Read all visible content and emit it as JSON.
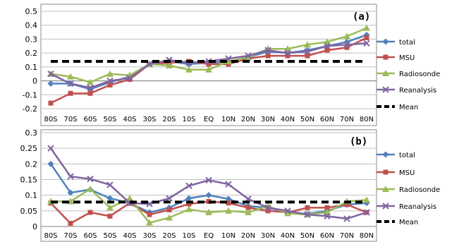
{
  "chart_data": [
    {
      "type": "line",
      "panel_label": "(a)",
      "x": [
        "80S",
        "70S",
        "60S",
        "50S",
        "40S",
        "30S",
        "20S",
        "10S",
        "EQ",
        "10N",
        "20N",
        "30N",
        "40N",
        "50N",
        "60N",
        "70N",
        "80N"
      ],
      "ylim": [
        -0.2,
        0.5
      ],
      "yticks": [
        "-0.2",
        "-0.1",
        "0",
        "0.1",
        "0.2",
        "0.3",
        "0.4",
        "0.5"
      ],
      "ytick_values": [
        -0.2,
        -0.1,
        0,
        0.1,
        0.2,
        0.3,
        0.4,
        0.5
      ],
      "grid": true,
      "legend_position": "right",
      "series": [
        {
          "name": "total",
          "color": "#4f81bd",
          "marker": "diamond",
          "values": [
            -0.02,
            -0.02,
            -0.06,
            -0.01,
            0.03,
            0.12,
            0.14,
            0.12,
            0.13,
            0.14,
            0.17,
            0.21,
            0.2,
            0.22,
            0.25,
            0.28,
            0.33
          ]
        },
        {
          "name": "MSU",
          "color": "#c0504d",
          "marker": "square",
          "values": [
            -0.16,
            -0.09,
            -0.09,
            -0.03,
            0.01,
            0.12,
            0.13,
            0.14,
            0.12,
            0.12,
            0.16,
            0.18,
            0.18,
            0.18,
            0.22,
            0.24,
            0.31
          ]
        },
        {
          "name": "Radiosonde",
          "color": "#9bbb59",
          "marker": "triangle",
          "values": [
            0.05,
            0.03,
            -0.01,
            0.05,
            0.04,
            0.12,
            0.11,
            0.08,
            0.08,
            0.14,
            0.17,
            0.23,
            0.23,
            0.26,
            0.28,
            0.32,
            0.38
          ]
        },
        {
          "name": "Reanalysis",
          "color": "#8064a2",
          "marker": "x",
          "values": [
            0.05,
            -0.02,
            -0.05,
            0.0,
            0.02,
            0.12,
            0.15,
            0.13,
            0.14,
            0.16,
            0.18,
            0.22,
            0.2,
            0.21,
            0.25,
            0.26,
            0.27
          ]
        },
        {
          "name": "Mean",
          "color": "#000000",
          "marker": "none",
          "dashed": true,
          "values": [
            0.14,
            0.14,
            0.14,
            0.14,
            0.14,
            0.14,
            0.14,
            0.14,
            0.14,
            0.14,
            0.14,
            0.14,
            0.14,
            0.14,
            0.14,
            0.14,
            0.14
          ]
        }
      ]
    },
    {
      "type": "line",
      "panel_label": "(b)",
      "x": [
        "80S",
        "70S",
        "60S",
        "50S",
        "40S",
        "30S",
        "20S",
        "10S",
        "EQ",
        "10N",
        "20N",
        "30N",
        "40N",
        "50N",
        "60N",
        "70N",
        "80N"
      ],
      "ylim": [
        0,
        0.3
      ],
      "yticks": [
        "0",
        "0.05",
        "0.1",
        "0.15",
        "0.2",
        "0.25",
        "0.3"
      ],
      "ytick_values": [
        0,
        0.05,
        0.1,
        0.15,
        0.2,
        0.25,
        0.3
      ],
      "grid": true,
      "legend_position": "right",
      "series": [
        {
          "name": "total",
          "color": "#4f81bd",
          "marker": "diamond",
          "values": [
            0.2,
            0.108,
            0.118,
            0.09,
            0.075,
            0.045,
            0.06,
            0.09,
            0.1,
            0.088,
            0.065,
            0.06,
            0.045,
            0.04,
            0.05,
            0.07,
            0.075
          ]
        },
        {
          "name": "MSU",
          "color": "#c0504d",
          "marker": "square",
          "values": [
            0.075,
            0.01,
            0.045,
            0.033,
            0.075,
            0.038,
            0.053,
            0.072,
            0.08,
            0.075,
            0.06,
            0.05,
            0.045,
            0.06,
            0.06,
            0.07,
            0.045
          ]
        },
        {
          "name": "Radiosonde",
          "color": "#9bbb59",
          "marker": "triangle",
          "values": [
            0.08,
            0.08,
            0.12,
            0.06,
            0.09,
            0.012,
            0.028,
            0.055,
            0.045,
            0.05,
            0.045,
            0.065,
            0.042,
            0.038,
            0.045,
            0.08,
            0.085
          ]
        },
        {
          "name": "Reanalysis",
          "color": "#8064a2",
          "marker": "x",
          "values": [
            0.25,
            0.16,
            0.152,
            0.133,
            0.075,
            0.072,
            0.09,
            0.13,
            0.148,
            0.135,
            0.088,
            0.06,
            0.05,
            0.038,
            0.033,
            0.025,
            0.045
          ]
        },
        {
          "name": "Mean",
          "color": "#000000",
          "marker": "none",
          "dashed": true,
          "values": [
            0.078,
            0.078,
            0.078,
            0.078,
            0.078,
            0.078,
            0.078,
            0.078,
            0.078,
            0.078,
            0.078,
            0.078,
            0.078,
            0.078,
            0.078,
            0.078,
            0.078
          ]
        }
      ]
    }
  ]
}
